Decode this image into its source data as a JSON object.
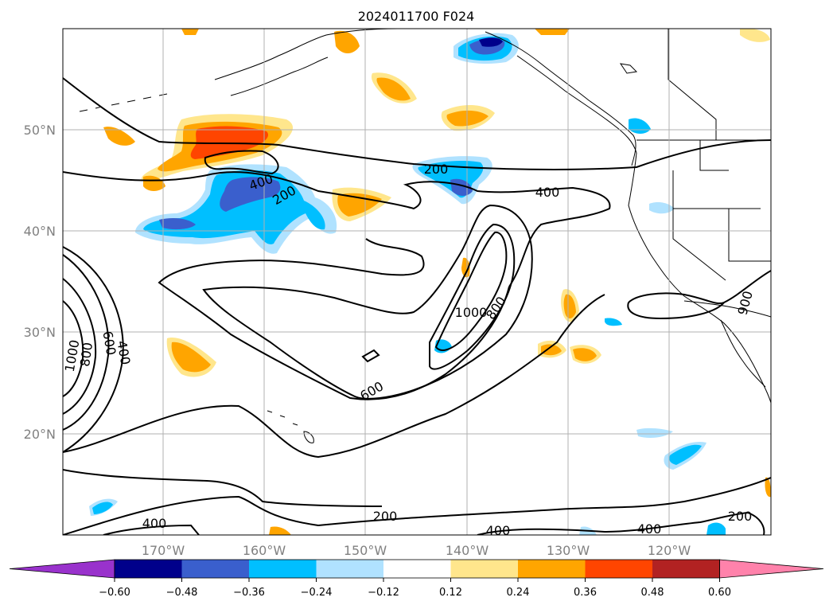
{
  "title": "2024011700 F024",
  "map": {
    "lat_labels": [
      "50°N",
      "40°N",
      "30°N",
      "20°N"
    ],
    "lon_labels": [
      "170°W",
      "160°W",
      "150°W",
      "140°W",
      "130°W",
      "120°W"
    ],
    "gridlines": true,
    "contour_labels": [
      "200",
      "400",
      "200",
      "400",
      "1000",
      "800",
      "600",
      "1000",
      "800",
      "600",
      "400",
      "200",
      "400",
      "400",
      "400",
      "200",
      "900"
    ]
  },
  "colorbar": {
    "ticks": [
      "−0.60",
      "−0.48",
      "−0.36",
      "−0.24",
      "−0.12",
      "0.12",
      "0.24",
      "0.36",
      "0.48",
      "0.60"
    ],
    "colors": [
      "#9932cc",
      "#00008b",
      "#3a5fcd",
      "#00bfff",
      "#b0e2ff",
      "#ffffff",
      "#ffe68c",
      "#ffa500",
      "#ff4500",
      "#b22222",
      "#ff82ab"
    ],
    "extend": "both"
  },
  "colors": {
    "coast": "#000000",
    "grid": "#b0b0b0",
    "contour": "#000000"
  }
}
